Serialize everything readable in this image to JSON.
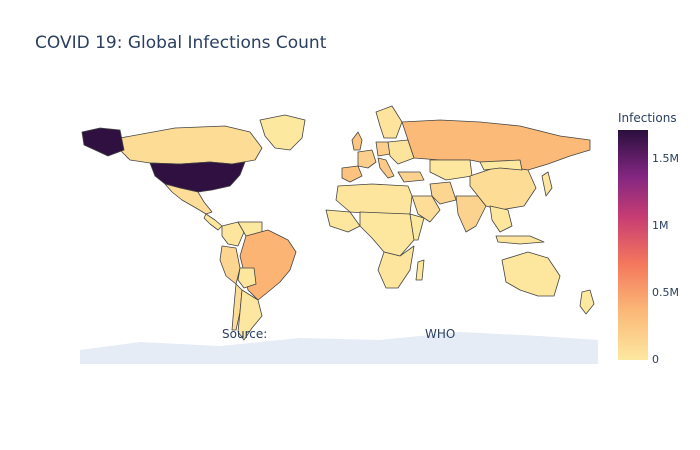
{
  "title": "COVID 19: Global Infections Count",
  "colorbar": {
    "title": "Infections",
    "ticks": [
      "0",
      "0.5M",
      "1M",
      "1.5M"
    ],
    "tick_values": [
      0,
      500000,
      1000000,
      1500000
    ],
    "max": 1720000
  },
  "annotation": {
    "source_label": "Source:",
    "source_value": "WHO"
  },
  "colors": {
    "antarctica": "#e5ecf6",
    "border": "#444444",
    "text": "#2a3f5f"
  },
  "chart_data": {
    "type": "choropleth",
    "title": "COVID 19: Global Infections Count",
    "colorscale": "magma-like (light yellow to dark purple)",
    "colorbar_title": "Infections",
    "range": [
      0,
      1720000
    ],
    "regions": [
      {
        "name": "United States",
        "value": 1700000
      },
      {
        "name": "Brazil",
        "value": 390000
      },
      {
        "name": "Russia",
        "value": 350000
      },
      {
        "name": "Canada",
        "value": 90000
      },
      {
        "name": "India",
        "value": 160000
      },
      {
        "name": "United Kingdom",
        "value": 260000
      },
      {
        "name": "Spain",
        "value": 280000
      },
      {
        "name": "Italy",
        "value": 230000
      },
      {
        "name": "Germany",
        "value": 180000
      },
      {
        "name": "France",
        "value": 180000
      },
      {
        "name": "Peru",
        "value": 140000
      },
      {
        "name": "Chile",
        "value": 90000
      },
      {
        "name": "Mexico",
        "value": 80000
      },
      {
        "name": "Iran",
        "value": 140000
      },
      {
        "name": "Turkey",
        "value": 160000
      },
      {
        "name": "Saudi Arabia",
        "value": 80000
      },
      {
        "name": "China",
        "value": 84000
      },
      {
        "name": "Australia",
        "value": 7000
      },
      {
        "name": "Greenland",
        "value": 10
      }
    ]
  }
}
